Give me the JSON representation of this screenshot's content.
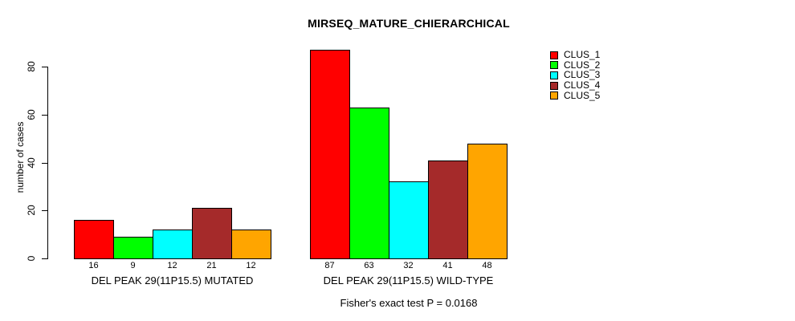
{
  "chart_data": {
    "type": "bar",
    "title": "MIRSEQ_MATURE_CHIERARCHICAL",
    "ylabel": "number of cases",
    "xlabel": "",
    "annotation": "Fisher's exact test P = 0.0168",
    "yticks": [
      0,
      20,
      40,
      60,
      80
    ],
    "ylim": [
      0,
      87
    ],
    "grid": false,
    "legend_position": "right",
    "groups": [
      {
        "label": "DEL PEAK 29(11P15.5) MUTATED",
        "values": [
          16,
          9,
          12,
          21,
          12
        ]
      },
      {
        "label": "DEL PEAK 29(11P15.5) WILD-TYPE",
        "values": [
          87,
          63,
          32,
          41,
          48
        ]
      }
    ],
    "series": [
      {
        "name": "CLUS_1",
        "color": "#FF0000"
      },
      {
        "name": "CLUS_2",
        "color": "#00FF00"
      },
      {
        "name": "CLUS_3",
        "color": "#00FFFF"
      },
      {
        "name": "CLUS_4",
        "color": "#A52A2A"
      },
      {
        "name": "CLUS_5",
        "color": "#FFA500"
      }
    ]
  }
}
